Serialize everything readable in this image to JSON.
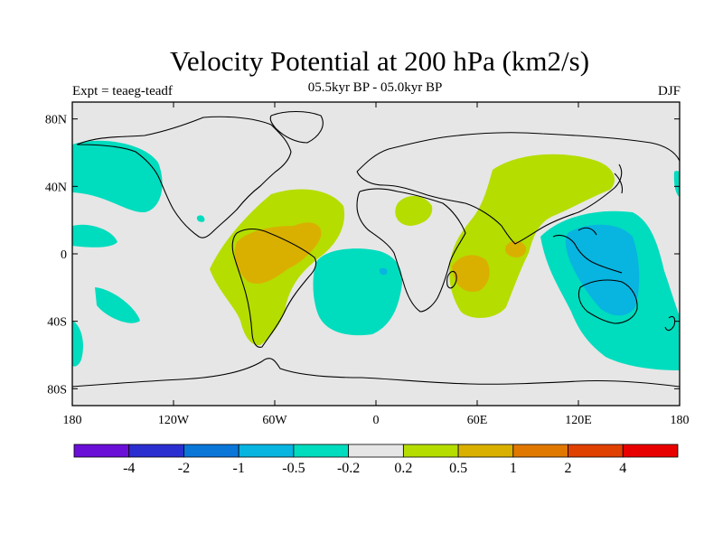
{
  "header": {
    "title": "Velocity Potential at 200 hPa (km2/s)",
    "subtitle": "05.5kyr BP - 05.0kyr BP",
    "experiment": "Expt = teaeg-teadf",
    "season": "DJF"
  },
  "map": {
    "x_ticks": [
      "180",
      "120W",
      "60W",
      "0",
      "60E",
      "120E",
      "180"
    ],
    "y_ticks": [
      "80N",
      "40N",
      "0",
      "40S",
      "80S"
    ],
    "background_color": "#e6e6e6"
  },
  "colorbar": {
    "colors": [
      "#6a0fd8",
      "#2b2fd0",
      "#0a76d8",
      "#08b4e0",
      "#00dcbe",
      "#e6e6e6",
      "#b5dd00",
      "#d9b000",
      "#e07800",
      "#e04000",
      "#e80000"
    ],
    "labels": [
      "-4",
      "-2",
      "-1",
      "-0.5",
      "-0.2",
      "0.2",
      "0.5",
      "1",
      "2",
      "4"
    ]
  },
  "colors": {
    "negative_weak": "#00dcbe",
    "negative_medium": "#08b4e0",
    "positive_weak": "#b5dd00",
    "positive_medium": "#d9b000"
  }
}
